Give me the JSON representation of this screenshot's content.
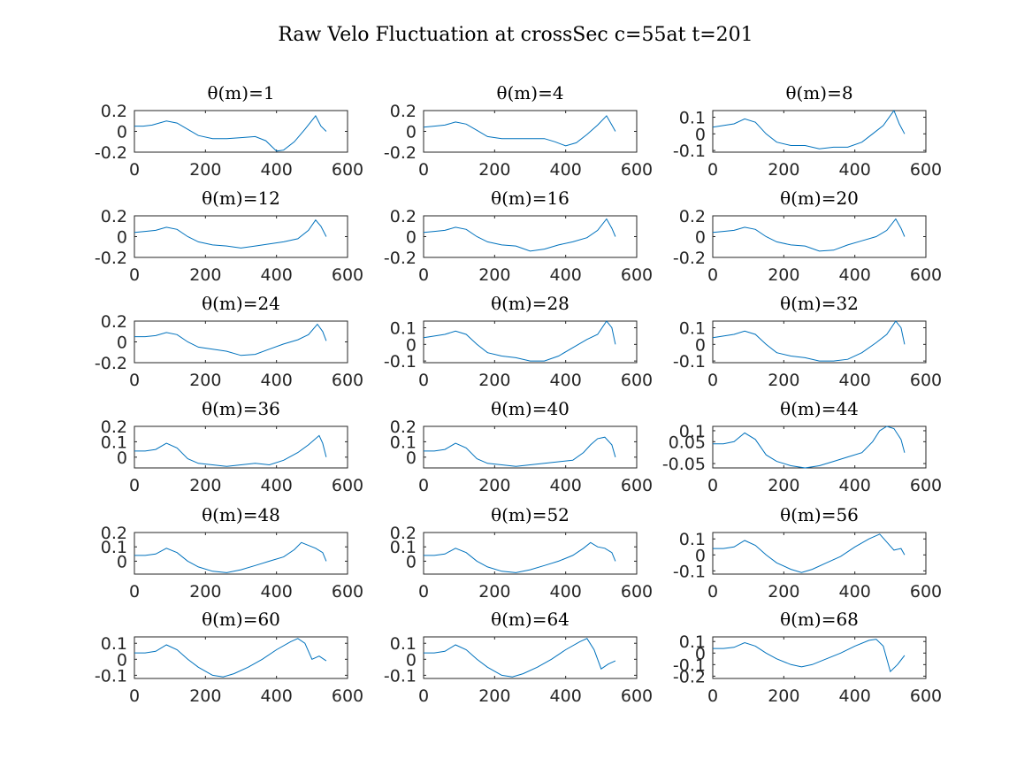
{
  "figure": {
    "title": "Raw Velo Fluctuation at crossSec c=55at t=201"
  },
  "colors": {
    "series": "#0072bd",
    "axis": "#262626"
  },
  "chart_data": [
    {
      "type": "line",
      "title": "θ(m)=1",
      "xlim": [
        0,
        600
      ],
      "ylim": [
        -0.2,
        0.2
      ],
      "xticks": [
        "0",
        "200",
        "400",
        "600"
      ],
      "yticks": [
        "0.2",
        "0",
        "-0.2"
      ],
      "yticks_values": [
        0.2,
        0,
        -0.2
      ],
      "x": [
        0,
        25,
        50,
        90,
        120,
        150,
        180,
        220,
        260,
        300,
        340,
        370,
        400,
        420,
        450,
        480,
        510,
        525,
        540
      ],
      "y": [
        0.05,
        0.05,
        0.06,
        0.1,
        0.08,
        0.02,
        -0.04,
        -0.07,
        -0.07,
        -0.06,
        -0.05,
        -0.09,
        -0.19,
        -0.18,
        -0.1,
        0.02,
        0.15,
        0.05,
        0.0
      ]
    },
    {
      "type": "line",
      "title": "θ(m)=4",
      "xlim": [
        0,
        600
      ],
      "ylim": [
        -0.2,
        0.2
      ],
      "xticks": [
        "0",
        "200",
        "400",
        "600"
      ],
      "yticks": [
        "0.2",
        "0",
        "-0.2"
      ],
      "yticks_values": [
        0.2,
        0,
        -0.2
      ],
      "x": [
        0,
        30,
        60,
        90,
        120,
        150,
        180,
        220,
        260,
        300,
        340,
        370,
        400,
        430,
        460,
        490,
        515,
        530,
        540
      ],
      "y": [
        0.04,
        0.05,
        0.06,
        0.09,
        0.07,
        0.01,
        -0.05,
        -0.07,
        -0.07,
        -0.07,
        -0.07,
        -0.1,
        -0.14,
        -0.11,
        -0.03,
        0.06,
        0.15,
        0.06,
        0.0
      ]
    },
    {
      "type": "line",
      "title": "θ(m)=8",
      "xlim": [
        0,
        600
      ],
      "ylim": [
        -0.11,
        0.14
      ],
      "xticks": [
        "0",
        "200",
        "400",
        "600"
      ],
      "yticks": [
        "0.1",
        "0",
        "-0.1"
      ],
      "yticks_values": [
        0.1,
        0,
        -0.1
      ],
      "x": [
        0,
        30,
        60,
        90,
        120,
        150,
        180,
        220,
        260,
        300,
        340,
        380,
        420,
        450,
        480,
        510,
        525,
        540
      ],
      "y": [
        0.04,
        0.05,
        0.06,
        0.09,
        0.07,
        0.0,
        -0.05,
        -0.07,
        -0.07,
        -0.09,
        -0.08,
        -0.08,
        -0.05,
        0.0,
        0.05,
        0.14,
        0.06,
        0.0
      ]
    },
    {
      "type": "line",
      "title": "θ(m)=12",
      "xlim": [
        0,
        600
      ],
      "ylim": [
        -0.2,
        0.2
      ],
      "xticks": [
        "0",
        "200",
        "400",
        "600"
      ],
      "yticks": [
        "0.2",
        "0",
        "-0.2"
      ],
      "yticks_values": [
        0.2,
        0,
        -0.2
      ],
      "x": [
        0,
        30,
        60,
        90,
        120,
        150,
        180,
        220,
        260,
        300,
        340,
        380,
        420,
        460,
        490,
        510,
        525,
        540
      ],
      "y": [
        0.04,
        0.05,
        0.06,
        0.09,
        0.07,
        0.0,
        -0.05,
        -0.08,
        -0.09,
        -0.11,
        -0.09,
        -0.07,
        -0.05,
        -0.02,
        0.06,
        0.16,
        0.1,
        0.0
      ]
    },
    {
      "type": "line",
      "title": "θ(m)=16",
      "xlim": [
        0,
        600
      ],
      "ylim": [
        -0.2,
        0.2
      ],
      "xticks": [
        "0",
        "200",
        "400",
        "600"
      ],
      "yticks": [
        "0.2",
        "0",
        "-0.2"
      ],
      "yticks_values": [
        0.2,
        0,
        -0.2
      ],
      "x": [
        0,
        30,
        60,
        90,
        120,
        150,
        180,
        220,
        260,
        300,
        340,
        380,
        420,
        460,
        490,
        515,
        530,
        540
      ],
      "y": [
        0.04,
        0.05,
        0.06,
        0.09,
        0.07,
        0.0,
        -0.05,
        -0.08,
        -0.09,
        -0.14,
        -0.12,
        -0.08,
        -0.05,
        -0.01,
        0.06,
        0.17,
        0.08,
        0.0
      ]
    },
    {
      "type": "line",
      "title": "θ(m)=20",
      "xlim": [
        0,
        600
      ],
      "ylim": [
        -0.2,
        0.2
      ],
      "xticks": [
        "0",
        "200",
        "400",
        "600"
      ],
      "yticks": [
        "0.2",
        "0",
        "-0.2"
      ],
      "yticks_values": [
        0.2,
        0,
        -0.2
      ],
      "x": [
        0,
        30,
        60,
        90,
        120,
        150,
        180,
        220,
        260,
        300,
        340,
        380,
        420,
        460,
        490,
        515,
        530,
        540
      ],
      "y": [
        0.04,
        0.05,
        0.06,
        0.09,
        0.07,
        0.0,
        -0.05,
        -0.08,
        -0.09,
        -0.14,
        -0.13,
        -0.08,
        -0.04,
        0.0,
        0.06,
        0.17,
        0.08,
        0.0
      ]
    },
    {
      "type": "line",
      "title": "θ(m)=24",
      "xlim": [
        0,
        600
      ],
      "ylim": [
        -0.2,
        0.2
      ],
      "xticks": [
        "0",
        "200",
        "400",
        "600"
      ],
      "yticks": [
        "0.2",
        "0",
        "-0.2"
      ],
      "yticks_values": [
        0.2,
        0,
        -0.2
      ],
      "x": [
        0,
        30,
        60,
        90,
        120,
        150,
        180,
        220,
        260,
        300,
        340,
        380,
        420,
        460,
        490,
        515,
        530,
        540
      ],
      "y": [
        0.05,
        0.05,
        0.06,
        0.09,
        0.07,
        0.0,
        -0.05,
        -0.07,
        -0.09,
        -0.13,
        -0.12,
        -0.07,
        -0.02,
        0.02,
        0.07,
        0.17,
        0.1,
        0.01
      ]
    },
    {
      "type": "line",
      "title": "θ(m)=28",
      "xlim": [
        0,
        600
      ],
      "ylim": [
        -0.11,
        0.14
      ],
      "xticks": [
        "0",
        "200",
        "400",
        "600"
      ],
      "yticks": [
        "0.1",
        "0",
        "-0.1"
      ],
      "yticks_values": [
        0.1,
        0,
        -0.1
      ],
      "x": [
        0,
        30,
        60,
        90,
        120,
        150,
        180,
        220,
        260,
        300,
        340,
        380,
        420,
        460,
        490,
        515,
        530,
        540
      ],
      "y": [
        0.04,
        0.05,
        0.06,
        0.08,
        0.06,
        0.0,
        -0.05,
        -0.07,
        -0.08,
        -0.1,
        -0.1,
        -0.07,
        -0.02,
        0.03,
        0.06,
        0.14,
        0.1,
        0.0
      ]
    },
    {
      "type": "line",
      "title": "θ(m)=32",
      "xlim": [
        0,
        600
      ],
      "ylim": [
        -0.11,
        0.14
      ],
      "xticks": [
        "0",
        "200",
        "400",
        "600"
      ],
      "yticks": [
        "0.1",
        "0",
        "-0.1"
      ],
      "yticks_values": [
        0.1,
        0,
        -0.1
      ],
      "x": [
        0,
        30,
        60,
        90,
        120,
        150,
        180,
        220,
        260,
        300,
        340,
        380,
        420,
        460,
        490,
        515,
        530,
        540
      ],
      "y": [
        0.04,
        0.05,
        0.06,
        0.08,
        0.06,
        0.0,
        -0.05,
        -0.07,
        -0.08,
        -0.1,
        -0.1,
        -0.09,
        -0.05,
        0.01,
        0.06,
        0.14,
        0.1,
        0.0
      ]
    },
    {
      "type": "line",
      "title": "θ(m)=36",
      "xlim": [
        0,
        600
      ],
      "ylim": [
        -0.07,
        0.2
      ],
      "xticks": [
        "0",
        "200",
        "400",
        "600"
      ],
      "yticks": [
        "0.2",
        "0.1",
        "0"
      ],
      "yticks_values": [
        0.2,
        0.1,
        0
      ],
      "x": [
        0,
        30,
        60,
        90,
        120,
        150,
        180,
        220,
        260,
        300,
        340,
        380,
        420,
        460,
        490,
        520,
        530,
        540
      ],
      "y": [
        0.04,
        0.04,
        0.05,
        0.09,
        0.06,
        -0.01,
        -0.04,
        -0.05,
        -0.06,
        -0.05,
        -0.04,
        -0.05,
        -0.02,
        0.03,
        0.08,
        0.14,
        0.09,
        0.0
      ]
    },
    {
      "type": "line",
      "title": "θ(m)=40",
      "xlim": [
        0,
        600
      ],
      "ylim": [
        -0.07,
        0.2
      ],
      "xticks": [
        "0",
        "200",
        "400",
        "600"
      ],
      "yticks": [
        "0.2",
        "0.1",
        "0"
      ],
      "yticks_values": [
        0.2,
        0.1,
        0
      ],
      "x": [
        0,
        30,
        60,
        90,
        120,
        150,
        180,
        220,
        260,
        300,
        340,
        380,
        420,
        450,
        470,
        490,
        510,
        530,
        540
      ],
      "y": [
        0.04,
        0.04,
        0.05,
        0.09,
        0.06,
        -0.01,
        -0.04,
        -0.05,
        -0.06,
        -0.05,
        -0.04,
        -0.03,
        -0.02,
        0.03,
        0.08,
        0.12,
        0.13,
        0.08,
        0.0
      ]
    },
    {
      "type": "line",
      "title": "θ(m)=44",
      "xlim": [
        0,
        600
      ],
      "ylim": [
        -0.07,
        0.12
      ],
      "xticks": [
        "0",
        "200",
        "400",
        "600"
      ],
      "yticks": [
        "0.1",
        "0.05",
        "-0.05"
      ],
      "yticks_values": [
        0.1,
        0.05,
        -0.05
      ],
      "x": [
        0,
        30,
        60,
        90,
        120,
        150,
        180,
        220,
        260,
        300,
        340,
        380,
        420,
        450,
        470,
        490,
        510,
        530,
        540
      ],
      "y": [
        0.04,
        0.04,
        0.05,
        0.09,
        0.06,
        -0.01,
        -0.04,
        -0.06,
        -0.07,
        -0.06,
        -0.04,
        -0.02,
        0.0,
        0.05,
        0.1,
        0.12,
        0.11,
        0.06,
        0.0
      ]
    },
    {
      "type": "line",
      "title": "θ(m)=48",
      "xlim": [
        0,
        600
      ],
      "ylim": [
        -0.09,
        0.2
      ],
      "xticks": [
        "0",
        "200",
        "400",
        "600"
      ],
      "yticks": [
        "0.2",
        "0.1",
        "0"
      ],
      "yticks_values": [
        0.2,
        0.1,
        0
      ],
      "x": [
        0,
        30,
        60,
        90,
        120,
        150,
        180,
        220,
        260,
        300,
        340,
        380,
        420,
        450,
        470,
        490,
        510,
        530,
        540
      ],
      "y": [
        0.04,
        0.04,
        0.05,
        0.09,
        0.06,
        0.0,
        -0.04,
        -0.07,
        -0.08,
        -0.06,
        -0.03,
        0.0,
        0.03,
        0.08,
        0.13,
        0.11,
        0.09,
        0.06,
        0.0
      ]
    },
    {
      "type": "line",
      "title": "θ(m)=52",
      "xlim": [
        0,
        600
      ],
      "ylim": [
        -0.09,
        0.2
      ],
      "xticks": [
        "0",
        "200",
        "400",
        "600"
      ],
      "yticks": [
        "0.2",
        "0.1",
        "0"
      ],
      "yticks_values": [
        0.2,
        0.1,
        0
      ],
      "x": [
        0,
        30,
        60,
        90,
        120,
        150,
        180,
        220,
        260,
        300,
        340,
        380,
        420,
        450,
        470,
        490,
        510,
        530,
        540
      ],
      "y": [
        0.04,
        0.04,
        0.05,
        0.09,
        0.06,
        0.0,
        -0.04,
        -0.07,
        -0.08,
        -0.06,
        -0.03,
        0.0,
        0.04,
        0.09,
        0.13,
        0.1,
        0.09,
        0.06,
        0.0
      ]
    },
    {
      "type": "line",
      "title": "θ(m)=56",
      "xlim": [
        0,
        600
      ],
      "ylim": [
        -0.12,
        0.14
      ],
      "xticks": [
        "0",
        "200",
        "400",
        "600"
      ],
      "yticks": [
        "0.1",
        "0",
        "-0.1"
      ],
      "yticks_values": [
        0.1,
        0,
        -0.1
      ],
      "x": [
        0,
        30,
        60,
        90,
        120,
        150,
        180,
        220,
        250,
        280,
        320,
        360,
        400,
        440,
        470,
        490,
        510,
        530,
        540
      ],
      "y": [
        0.04,
        0.04,
        0.05,
        0.09,
        0.06,
        0.0,
        -0.05,
        -0.09,
        -0.11,
        -0.09,
        -0.05,
        -0.01,
        0.05,
        0.1,
        0.13,
        0.08,
        0.03,
        0.04,
        0.0
      ]
    },
    {
      "type": "line",
      "title": "θ(m)=60",
      "xlim": [
        0,
        600
      ],
      "ylim": [
        -0.12,
        0.14
      ],
      "xticks": [
        "0",
        "200",
        "400",
        "600"
      ],
      "yticks": [
        "0.1",
        "0",
        "-0.1"
      ],
      "yticks_values": [
        0.1,
        0,
        -0.1
      ],
      "x": [
        0,
        30,
        60,
        90,
        120,
        150,
        180,
        220,
        250,
        280,
        320,
        360,
        400,
        440,
        460,
        480,
        500,
        520,
        540
      ],
      "y": [
        0.04,
        0.04,
        0.05,
        0.09,
        0.06,
        0.0,
        -0.05,
        -0.1,
        -0.11,
        -0.09,
        -0.05,
        0.0,
        0.06,
        0.11,
        0.13,
        0.1,
        0.0,
        0.02,
        -0.01
      ]
    },
    {
      "type": "line",
      "title": "θ(m)=64",
      "xlim": [
        0,
        600
      ],
      "ylim": [
        -0.12,
        0.14
      ],
      "xticks": [
        "0",
        "200",
        "400",
        "600"
      ],
      "yticks": [
        "0.1",
        "0",
        "-0.1"
      ],
      "yticks_values": [
        0.1,
        0,
        -0.1
      ],
      "x": [
        0,
        30,
        60,
        90,
        120,
        150,
        180,
        220,
        250,
        280,
        320,
        360,
        400,
        440,
        460,
        480,
        500,
        520,
        540
      ],
      "y": [
        0.04,
        0.04,
        0.05,
        0.09,
        0.06,
        0.0,
        -0.05,
        -0.1,
        -0.11,
        -0.09,
        -0.05,
        0.0,
        0.06,
        0.11,
        0.13,
        0.06,
        -0.06,
        -0.03,
        -0.01
      ]
    },
    {
      "type": "line",
      "title": "θ(m)=68",
      "xlim": [
        0,
        600
      ],
      "ylim": [
        -0.22,
        0.14
      ],
      "xticks": [
        "0",
        "200",
        "400",
        "600"
      ],
      "yticks": [
        "0.1",
        "0",
        "-0.1",
        "-0.2"
      ],
      "yticks_values": [
        0.1,
        0,
        -0.1,
        -0.2
      ],
      "x": [
        0,
        30,
        60,
        90,
        120,
        150,
        180,
        220,
        250,
        280,
        320,
        360,
        400,
        440,
        460,
        480,
        500,
        520,
        540
      ],
      "y": [
        0.04,
        0.04,
        0.05,
        0.09,
        0.06,
        0.0,
        -0.05,
        -0.1,
        -0.12,
        -0.1,
        -0.05,
        0.0,
        0.06,
        0.11,
        0.12,
        0.06,
        -0.16,
        -0.1,
        -0.02
      ]
    }
  ]
}
